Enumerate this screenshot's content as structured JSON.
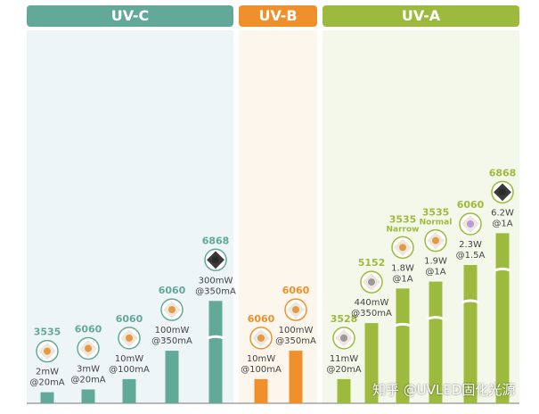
{
  "bands": [
    {
      "label": "UV-C",
      "color": "#63a99a"
    },
    {
      "label": "UV-B",
      "color": "#f0902c"
    },
    {
      "label": "UV-A",
      "color": "#9cbb3e"
    }
  ],
  "chart_data": {
    "type": "bar",
    "title": "",
    "groups": [
      "UV-C",
      "UV-B",
      "UV-A"
    ],
    "series": [
      {
        "group": "UV-C",
        "package": "3535",
        "label": [
          "2mW",
          "@20mA"
        ],
        "power_mw": 2,
        "current_ma": 20,
        "height": 0.08,
        "broken": false,
        "package_color": "#63a99a",
        "bar_color": "#63a99a",
        "chip": "amber"
      },
      {
        "group": "UV-C",
        "package": "6060",
        "label": [
          "3mW",
          "@20mA"
        ],
        "power_mw": 3,
        "current_ma": 20,
        "height": 0.1,
        "broken": false,
        "package_color": "#63a99a",
        "bar_color": "#63a99a",
        "chip": "amber"
      },
      {
        "group": "UV-C",
        "package": "6060",
        "label": [
          "10mW",
          "@100mA"
        ],
        "power_mw": 10,
        "current_ma": 100,
        "height": 0.175,
        "broken": false,
        "package_color": "#63a99a",
        "bar_color": "#63a99a",
        "chip": "amber"
      },
      {
        "group": "UV-C",
        "package": "6060",
        "label": [
          "100mW",
          "@350mA"
        ],
        "power_mw": 100,
        "current_ma": 350,
        "height": 0.38,
        "broken": false,
        "package_color": "#63a99a",
        "bar_color": "#63a99a",
        "chip": "amber"
      },
      {
        "group": "UV-C",
        "package": "6868",
        "label": [
          "300mW",
          "@350mA"
        ],
        "power_mw": 300,
        "current_ma": 350,
        "height": 0.74,
        "broken": true,
        "package_color": "#63a99a",
        "bar_color": "#63a99a",
        "chip": "dark"
      },
      {
        "group": "UV-B",
        "package": "6060",
        "label": [
          "10mW",
          "@100mA"
        ],
        "power_mw": 10,
        "current_ma": 100,
        "height": 0.175,
        "broken": false,
        "package_color": "#f0902c",
        "bar_color": "#f0902c",
        "chip": "amber"
      },
      {
        "group": "UV-B",
        "package": "6060",
        "label": [
          "100mW",
          "@350mA"
        ],
        "power_mw": 100,
        "current_ma": 350,
        "height": 0.38,
        "broken": false,
        "package_color": "#f0902c",
        "bar_color": "#f0902c",
        "chip": "amber"
      },
      {
        "group": "UV-A",
        "package": "3528",
        "label": [
          "11mW",
          "@20mA"
        ],
        "power_mw": 11,
        "current_ma": 20,
        "height": 0.175,
        "broken": false,
        "package_color": "#9cbb3e",
        "bar_color": "#9cbb3e",
        "chip": "grey"
      },
      {
        "group": "UV-A",
        "package": "5152",
        "label": [
          "440mW",
          "@350mA"
        ],
        "power_mw": 440,
        "current_ma": 350,
        "height": 0.58,
        "broken": false,
        "package_color": "#9cbb3e",
        "bar_color": "#9cbb3e",
        "chip": "grey"
      },
      {
        "group": "UV-A",
        "package": "3535",
        "package_sub": "Narrow",
        "label": [
          "1.8W",
          "@1A"
        ],
        "power_mw": 1800,
        "current_ma": 1000,
        "height": 0.83,
        "broken": true,
        "package_color": "#9cbb3e",
        "bar_color": "#9cbb3e",
        "chip": "amber"
      },
      {
        "group": "UV-A",
        "package": "3535",
        "package_sub": "Normal",
        "label": [
          "1.9W",
          "@1A"
        ],
        "power_mw": 1900,
        "current_ma": 1000,
        "height": 0.88,
        "broken": true,
        "package_color": "#9cbb3e",
        "bar_color": "#9cbb3e",
        "chip": "amber"
      },
      {
        "group": "UV-A",
        "package": "6060",
        "label": [
          "2.3W",
          "@1.5A"
        ],
        "power_mw": 2300,
        "current_ma": 1500,
        "height": 1.0,
        "broken": true,
        "package_color": "#9cbb3e",
        "bar_color": "#9cbb3e",
        "chip": "violet"
      },
      {
        "group": "UV-A",
        "package": "6868",
        "label": [
          "6.2W",
          "@1A"
        ],
        "power_mw": 6200,
        "current_ma": 1000,
        "height": 1.23,
        "broken": true,
        "package_color": "#9cbb3e",
        "bar_color": "#9cbb3e",
        "chip": "dark"
      }
    ],
    "units": {
      "power": "mW/W",
      "current": "mA/A"
    },
    "grid": false,
    "legend": "none"
  },
  "watermark": "知乎 @UVLED固化光源"
}
